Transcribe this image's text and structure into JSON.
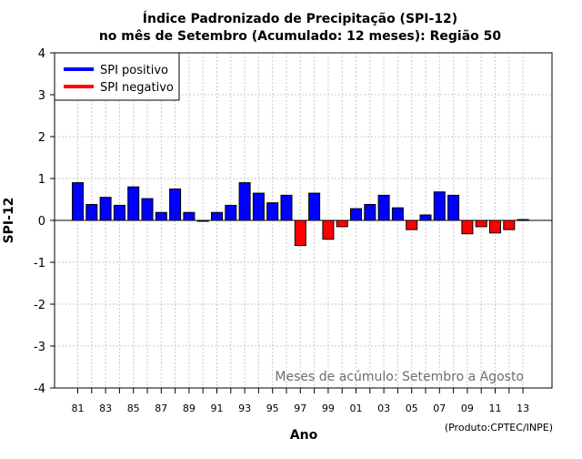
{
  "chart_data": {
    "type": "bar",
    "title": "Índice Padronizado de Precipitação (SPI-12)",
    "subtitle": "no mês de Setembro (Acumulado: 12 meses): Região 50",
    "xlabel": "Ano",
    "ylabel": "SPI-12",
    "ylim": [
      -4,
      4
    ],
    "yticks": [
      -4,
      -3,
      -2,
      -1,
      0,
      1,
      2,
      3,
      4
    ],
    "grid": true,
    "legend_position": "top-left",
    "annotation": "Meses de acúmulo: Setembro a Agosto",
    "credit": "(Produto:CPTEC/INPE)",
    "x_tick_labels": [
      "81",
      "83",
      "85",
      "87",
      "89",
      "91",
      "93",
      "95",
      "97",
      "99",
      "01",
      "03",
      "05",
      "07",
      "09",
      "11",
      "13"
    ],
    "categories": [
      "1981",
      "1982",
      "1983",
      "1984",
      "1985",
      "1986",
      "1987",
      "1988",
      "1989",
      "1990",
      "1991",
      "1992",
      "1993",
      "1994",
      "1995",
      "1996",
      "1997",
      "1998",
      "1999",
      "2000",
      "2001",
      "2002",
      "2003",
      "2004",
      "2005",
      "2006",
      "2007",
      "2008",
      "2009",
      "2010",
      "2011",
      "2012",
      "2013"
    ],
    "values": [
      0.9,
      0.38,
      0.55,
      0.36,
      0.8,
      0.52,
      0.19,
      0.75,
      0.19,
      -0.02,
      0.19,
      0.36,
      0.9,
      0.65,
      0.42,
      0.6,
      -0.6,
      0.65,
      -0.45,
      -0.15,
      0.28,
      0.38,
      0.6,
      0.3,
      -0.22,
      0.13,
      0.68,
      0.6,
      -0.32,
      -0.15,
      -0.3,
      -0.22,
      0.02
    ],
    "series": [
      {
        "name": "SPI positivo",
        "color": "#0000ff"
      },
      {
        "name": "SPI negativo",
        "color": "#ff0000"
      }
    ]
  }
}
